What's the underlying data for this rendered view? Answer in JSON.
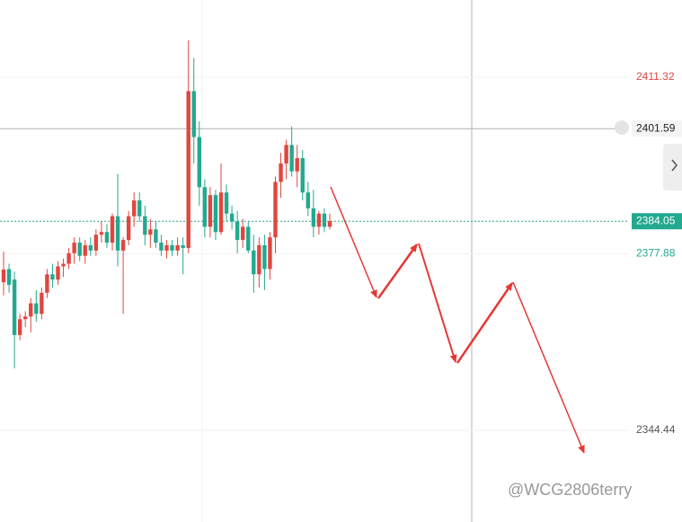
{
  "chart_data": {
    "type": "candlestick",
    "ylim": [
      2327.08,
      2425.96
    ],
    "yticks": [
      2411.32,
      2377.88,
      2344.44
    ],
    "ytick_colors": [
      "#e0463f",
      "#22a98f",
      "#555555"
    ],
    "grid": true,
    "up_color": "#e0463f",
    "down_color": "#22a98f",
    "crosshair_price": 2401.59,
    "last_price": 2384.05,
    "watermark": "@WCG2806terry",
    "open": [
      2372.5,
      2375.0,
      2373.0,
      2362.5,
      2365.5,
      2366.0,
      2368.5,
      2366.5,
      2370.5,
      2374.0,
      2373.0,
      2375.5,
      2376.0,
      2378.0,
      2380.0,
      2377.5,
      2379.5,
      2378.5,
      2381.5,
      2382.0,
      2380.0,
      2385.0,
      2378.5,
      2380.5,
      2385.0,
      2388.0,
      2385.0,
      2381.5,
      2382.5,
      2380.0,
      2378.5,
      2379.5,
      2378.5,
      2379.5,
      2379.0,
      2408.7,
      2400.0,
      2390.5,
      2383.0,
      2389.0,
      2382.0,
      2389.5,
      2385.5,
      2384.0,
      2380.5,
      2383.0,
      2378.5,
      2374.0,
      2379.5,
      2375.0,
      2381.0,
      2391.5,
      2395.0,
      2398.5,
      2393.5,
      2396.0,
      2389.5,
      2386.5,
      2383.0,
      2385.5,
      2383.0
    ],
    "high": [
      2378.3,
      2376.0,
      2374.5,
      2366.5,
      2367.0,
      2369.5,
      2371.0,
      2371.5,
      2375.0,
      2376.0,
      2376.5,
      2377.0,
      2379.0,
      2381.0,
      2381.0,
      2380.5,
      2381.0,
      2382.5,
      2384.0,
      2383.5,
      2385.5,
      2393.0,
      2381.0,
      2386.0,
      2389.5,
      2389.5,
      2387.0,
      2384.5,
      2384.0,
      2381.5,
      2380.5,
      2380.5,
      2381.0,
      2381.0,
      2418.3,
      2415.0,
      2403.0,
      2392.0,
      2390.5,
      2390.0,
      2395.0,
      2391.0,
      2387.0,
      2386.0,
      2384.5,
      2384.0,
      2381.5,
      2381.0,
      2381.5,
      2382.0,
      2392.5,
      2397.0,
      2399.5,
      2402.0,
      2398.5,
      2397.5,
      2391.5,
      2390.0,
      2386.0,
      2386.5,
      2385.5
    ],
    "low": [
      2370.0,
      2370.5,
      2356.2,
      2361.5,
      2364.0,
      2363.0,
      2365.0,
      2365.5,
      2369.5,
      2371.5,
      2372.0,
      2373.5,
      2375.0,
      2376.0,
      2376.5,
      2376.0,
      2377.5,
      2377.5,
      2380.0,
      2379.0,
      2378.5,
      2375.5,
      2366.5,
      2379.5,
      2383.0,
      2384.0,
      2379.5,
      2379.0,
      2379.0,
      2377.5,
      2377.0,
      2377.5,
      2377.5,
      2374.0,
      2378.0,
      2395.0,
      2387.0,
      2381.0,
      2381.0,
      2380.5,
      2381.5,
      2384.0,
      2382.5,
      2378.0,
      2379.0,
      2378.0,
      2370.5,
      2371.5,
      2371.0,
      2373.0,
      2378.0,
      2388.5,
      2392.0,
      2392.5,
      2390.5,
      2388.0,
      2385.0,
      2381.0,
      2381.5,
      2382.0,
      2382.5
    ],
    "close": [
      2374.9,
      2372.0,
      2362.5,
      2365.5,
      2366.0,
      2368.5,
      2366.5,
      2370.5,
      2374.0,
      2373.0,
      2375.5,
      2376.0,
      2378.0,
      2380.0,
      2377.5,
      2379.5,
      2378.5,
      2381.5,
      2382.0,
      2380.0,
      2385.0,
      2378.5,
      2380.5,
      2385.0,
      2388.0,
      2385.0,
      2381.5,
      2382.5,
      2380.0,
      2378.5,
      2379.5,
      2378.5,
      2379.5,
      2379.0,
      2408.7,
      2400.0,
      2390.5,
      2383.0,
      2389.0,
      2382.0,
      2389.5,
      2385.5,
      2384.0,
      2380.5,
      2383.0,
      2378.5,
      2374.0,
      2379.5,
      2375.0,
      2381.0,
      2391.5,
      2395.0,
      2398.5,
      2393.5,
      2396.0,
      2389.5,
      2386.5,
      2383.0,
      2385.5,
      2383.0,
      2384.05
    ]
  }
}
